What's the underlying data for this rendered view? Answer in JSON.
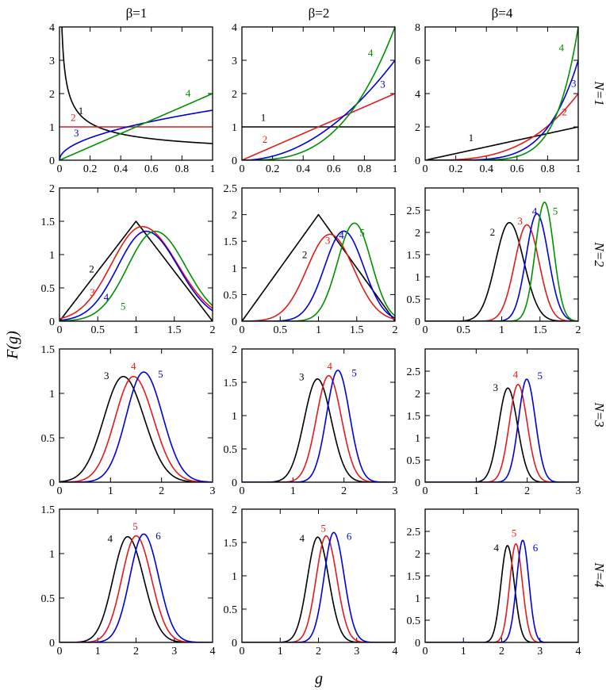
{
  "figure": {
    "ylabel": "F(g)",
    "xlabel": "g",
    "column_titles": [
      "β=1",
      "β=2",
      "β=4"
    ],
    "row_titles": [
      "N=1",
      "N=2",
      "N=3",
      "N=4"
    ]
  },
  "colors": {
    "black": "#000000",
    "red": "#e41a1c",
    "blue": "#0000dd",
    "green": "#009000"
  },
  "chart_data": [
    {
      "id": "N1-b1",
      "type": "line",
      "beta": 1,
      "N": 1,
      "xlim": [
        0,
        1
      ],
      "ylim": [
        0,
        4
      ],
      "xticks": [
        0,
        0.2,
        0.4,
        0.6,
        0.8,
        1
      ],
      "xtick_labels": [
        "0",
        "0.2",
        "0.4",
        "0.6",
        "0.8",
        "1"
      ],
      "yticks": [
        0,
        1,
        2,
        3,
        4
      ],
      "ytick_labels": [
        "0",
        "1",
        "2",
        "3",
        "4"
      ],
      "series": [
        {
          "name": "1",
          "color": "#000000",
          "form": "power",
          "a": 0.5,
          "p": -0.5,
          "label": "1",
          "label_at": [
            0.14,
            1.38
          ]
        },
        {
          "name": "2",
          "color": "#e41a1c",
          "form": "power",
          "a": 1,
          "p": 0,
          "label": "2",
          "label_at": [
            0.09,
            1.18
          ]
        },
        {
          "name": "3",
          "color": "#0000dd",
          "form": "power",
          "a": 1.5,
          "p": 0.5,
          "label": "3",
          "label_at": [
            0.11,
            0.72
          ]
        },
        {
          "name": "4",
          "color": "#009000",
          "form": "power",
          "a": 2,
          "p": 1,
          "label": "4",
          "label_at": [
            0.84,
            1.9
          ]
        }
      ]
    },
    {
      "id": "N1-b2",
      "type": "line",
      "beta": 2,
      "N": 1,
      "xlim": [
        0,
        1
      ],
      "ylim": [
        0,
        4
      ],
      "xticks": [
        0,
        0.2,
        0.4,
        0.6,
        0.8,
        1
      ],
      "xtick_labels": [
        "0",
        "0.2",
        "0.4",
        "0.6",
        "0.8",
        "1"
      ],
      "yticks": [
        0,
        1,
        2,
        3,
        4
      ],
      "ytick_labels": [
        "0",
        "1",
        "2",
        "3",
        "4"
      ],
      "series": [
        {
          "name": "1",
          "color": "#000000",
          "form": "power",
          "a": 1,
          "p": 0,
          "label": "1",
          "label_at": [
            0.14,
            1.18
          ]
        },
        {
          "name": "2",
          "color": "#e41a1c",
          "form": "power",
          "a": 2,
          "p": 1,
          "label": "2",
          "label_at": [
            0.15,
            0.52
          ]
        },
        {
          "name": "3",
          "color": "#0000dd",
          "form": "power",
          "a": 3,
          "p": 2,
          "label": "3",
          "label_at": [
            0.92,
            2.18
          ]
        },
        {
          "name": "4",
          "color": "#009000",
          "form": "power",
          "a": 4,
          "p": 3,
          "label": "4",
          "label_at": [
            0.84,
            3.12
          ]
        }
      ]
    },
    {
      "id": "N1-b4",
      "type": "line",
      "beta": 4,
      "N": 1,
      "xlim": [
        0,
        1
      ],
      "ylim": [
        0,
        8
      ],
      "xticks": [
        0,
        0.2,
        0.4,
        0.6,
        0.8,
        1
      ],
      "xtick_labels": [
        "0",
        "0.2",
        "0.4",
        "0.6",
        "0.8",
        "1"
      ],
      "yticks": [
        0,
        2,
        4,
        6,
        8
      ],
      "ytick_labels": [
        "0",
        "2",
        "4",
        "6",
        "8"
      ],
      "series": [
        {
          "name": "1",
          "color": "#000000",
          "form": "power",
          "a": 2,
          "p": 1,
          "label": "1",
          "label_at": [
            0.3,
            1.15
          ]
        },
        {
          "name": "2",
          "color": "#e41a1c",
          "form": "power",
          "a": 4,
          "p": 3,
          "label": "2",
          "label_at": [
            0.91,
            2.68
          ]
        },
        {
          "name": "3",
          "color": "#0000dd",
          "form": "power",
          "a": 6,
          "p": 5,
          "label": "3",
          "label_at": [
            0.97,
            4.4
          ]
        },
        {
          "name": "4",
          "color": "#009000",
          "form": "power",
          "a": 8,
          "p": 7,
          "label": "4",
          "label_at": [
            0.89,
            6.55
          ]
        }
      ]
    },
    {
      "id": "N2-b1",
      "type": "line",
      "beta": 1,
      "N": 2,
      "xlim": [
        0,
        2
      ],
      "ylim": [
        0,
        2
      ],
      "xticks": [
        0,
        0.5,
        1,
        1.5,
        2
      ],
      "xtick_labels": [
        "0",
        "0.5",
        "1",
        "1.5",
        "2"
      ],
      "yticks": [
        0,
        0.5,
        1,
        1.5,
        2
      ],
      "ytick_labels": [
        "0",
        "0.5",
        "1",
        "1.5",
        "2"
      ],
      "series": [
        {
          "name": "2",
          "color": "#000000",
          "form": "tri",
          "h": 1.5,
          "label": "2",
          "label_at": [
            0.42,
            0.73
          ]
        },
        {
          "name": "3",
          "color": "#e41a1c",
          "form": "bell",
          "mu": 1.08,
          "sl": 0.4,
          "sr": 0.46,
          "h": 1.42,
          "label": "3",
          "label_at": [
            0.43,
            0.38
          ]
        },
        {
          "name": "4",
          "color": "#0000dd",
          "form": "bell",
          "mu": 1.13,
          "sl": 0.37,
          "sr": 0.42,
          "h": 1.35,
          "label": "4",
          "label_at": [
            0.61,
            0.31
          ]
        },
        {
          "name": "5",
          "color": "#009000",
          "form": "bell",
          "mu": 1.25,
          "sl": 0.36,
          "sr": 0.4,
          "h": 1.35,
          "label": "5",
          "label_at": [
            0.83,
            0.17
          ]
        }
      ]
    },
    {
      "id": "N2-b2",
      "type": "line",
      "beta": 2,
      "N": 2,
      "xlim": [
        0,
        2
      ],
      "ylim": [
        0,
        2.5
      ],
      "xticks": [
        0,
        0.5,
        1,
        1.5,
        2
      ],
      "xtick_labels": [
        "0",
        "0.5",
        "1",
        "1.5",
        "2"
      ],
      "yticks": [
        0,
        0.5,
        1,
        1.5,
        2,
        2.5
      ],
      "ytick_labels": [
        "0",
        "0.5",
        "1",
        "1.5",
        "2",
        "2.5"
      ],
      "series": [
        {
          "name": "2",
          "color": "#000000",
          "form": "tri",
          "h": 2.0,
          "label": "2",
          "label_at": [
            0.82,
            1.18
          ]
        },
        {
          "name": "3",
          "color": "#e41a1c",
          "form": "bell",
          "mu": 1.15,
          "sl": 0.3,
          "sr": 0.31,
          "h": 1.63,
          "label": "3",
          "label_at": [
            1.12,
            1.45
          ]
        },
        {
          "name": "4",
          "color": "#0000dd",
          "form": "bell",
          "mu": 1.33,
          "sl": 0.25,
          "sr": 0.26,
          "h": 1.69,
          "label": "4",
          "label_at": [
            1.3,
            1.55
          ]
        },
        {
          "name": "5",
          "color": "#009000",
          "form": "bell",
          "mu": 1.47,
          "sl": 0.22,
          "sr": 0.22,
          "h": 1.84,
          "label": "5",
          "label_at": [
            1.57,
            1.6
          ]
        }
      ]
    },
    {
      "id": "N2-b4",
      "type": "line",
      "beta": 4,
      "N": 2,
      "xlim": [
        0,
        2
      ],
      "ylim": [
        0,
        3
      ],
      "xticks": [
        0,
        0.5,
        1,
        1.5,
        2
      ],
      "xtick_labels": [
        "0",
        "0.5",
        "1",
        "1.5",
        "2"
      ],
      "yticks": [
        0,
        0.5,
        1,
        1.5,
        2,
        2.5
      ],
      "ytick_labels": [
        "0",
        "0.5",
        "1",
        "1.5",
        "2",
        "2.5"
      ],
      "series": [
        {
          "name": "2",
          "color": "#000000",
          "form": "bell",
          "mu": 1.1,
          "sl": 0.18,
          "sr": 0.19,
          "h": 2.22,
          "label": "2",
          "label_at": [
            0.88,
            1.93
          ]
        },
        {
          "name": "3",
          "color": "#e41a1c",
          "form": "bell",
          "mu": 1.33,
          "sl": 0.16,
          "sr": 0.16,
          "h": 2.17,
          "label": "3",
          "label_at": [
            1.24,
            2.18
          ]
        },
        {
          "name": "4",
          "color": "#0000dd",
          "form": "bell",
          "mu": 1.46,
          "sl": 0.14,
          "sr": 0.15,
          "h": 2.42,
          "label": "4",
          "label_at": [
            1.43,
            2.4
          ]
        },
        {
          "name": "5",
          "color": "#009000",
          "form": "bell",
          "mu": 1.56,
          "sl": 0.12,
          "sr": 0.12,
          "h": 2.68,
          "label": "5",
          "label_at": [
            1.7,
            2.4
          ]
        }
      ]
    },
    {
      "id": "N3-b1",
      "type": "line",
      "beta": 1,
      "N": 3,
      "xlim": [
        0,
        3
      ],
      "ylim": [
        0,
        1.5
      ],
      "xticks": [
        0,
        1,
        2,
        3
      ],
      "xtick_labels": [
        "0",
        "1",
        "2",
        "3"
      ],
      "yticks": [
        0,
        0.5,
        1,
        1.5
      ],
      "ytick_labels": [
        "0",
        "0.5",
        "1",
        "1.5"
      ],
      "series": [
        {
          "name": "3",
          "color": "#000000",
          "form": "bell",
          "mu": 1.25,
          "sl": 0.38,
          "sr": 0.41,
          "h": 1.19,
          "label": "3",
          "label_at": [
            0.92,
            1.16
          ]
        },
        {
          "name": "4",
          "color": "#e41a1c",
          "form": "bell",
          "mu": 1.45,
          "sl": 0.36,
          "sr": 0.39,
          "h": 1.19,
          "label": "4",
          "label_at": [
            1.45,
            1.27
          ]
        },
        {
          "name": "5",
          "color": "#0000dd",
          "form": "bell",
          "mu": 1.65,
          "sl": 0.34,
          "sr": 0.37,
          "h": 1.24,
          "label": "5",
          "label_at": [
            1.98,
            1.18
          ]
        }
      ]
    },
    {
      "id": "N3-b2",
      "type": "line",
      "beta": 2,
      "N": 3,
      "xlim": [
        0,
        3
      ],
      "ylim": [
        0,
        2
      ],
      "xticks": [
        0,
        1,
        2,
        3
      ],
      "xtick_labels": [
        "0",
        "1",
        "2",
        "3"
      ],
      "yticks": [
        0,
        0.5,
        1,
        1.5,
        2
      ],
      "ytick_labels": [
        "0",
        "0.5",
        "1",
        "1.5",
        "2"
      ],
      "series": [
        {
          "name": "3",
          "color": "#000000",
          "form": "bell",
          "mu": 1.48,
          "sl": 0.26,
          "sr": 0.27,
          "h": 1.55,
          "label": "3",
          "label_at": [
            1.17,
            1.53
          ]
        },
        {
          "name": "4",
          "color": "#e41a1c",
          "form": "bell",
          "mu": 1.7,
          "sl": 0.24,
          "sr": 0.25,
          "h": 1.6,
          "label": "4",
          "label_at": [
            1.72,
            1.69
          ]
        },
        {
          "name": "5",
          "color": "#0000dd",
          "form": "bell",
          "mu": 1.88,
          "sl": 0.22,
          "sr": 0.23,
          "h": 1.68,
          "label": "5",
          "label_at": [
            2.2,
            1.59
          ]
        }
      ]
    },
    {
      "id": "N3-b4",
      "type": "line",
      "beta": 4,
      "N": 3,
      "xlim": [
        0,
        3
      ],
      "ylim": [
        0,
        3
      ],
      "xticks": [
        0,
        1,
        2,
        3
      ],
      "xtick_labels": [
        "0",
        "1",
        "2",
        "3"
      ],
      "yticks": [
        0,
        0.5,
        1,
        1.5,
        2,
        2.5
      ],
      "ytick_labels": [
        "0",
        "0.5",
        "1",
        "1.5",
        "2",
        "2.5"
      ],
      "series": [
        {
          "name": "3",
          "color": "#000000",
          "form": "bell",
          "mu": 1.62,
          "sl": 0.18,
          "sr": 0.19,
          "h": 2.12,
          "label": "3",
          "label_at": [
            1.38,
            2.05
          ]
        },
        {
          "name": "4",
          "color": "#e41a1c",
          "form": "bell",
          "mu": 1.82,
          "sl": 0.17,
          "sr": 0.18,
          "h": 2.2,
          "label": "4",
          "label_at": [
            1.77,
            2.35
          ]
        },
        {
          "name": "5",
          "color": "#0000dd",
          "form": "bell",
          "mu": 1.99,
          "sl": 0.16,
          "sr": 0.17,
          "h": 2.32,
          "label": "5",
          "label_at": [
            2.25,
            2.32
          ]
        }
      ]
    },
    {
      "id": "N4-b1",
      "type": "line",
      "beta": 1,
      "N": 4,
      "xlim": [
        0,
        4
      ],
      "ylim": [
        0,
        1.5
      ],
      "xticks": [
        0,
        1,
        2,
        3,
        4
      ],
      "xtick_labels": [
        "0",
        "1",
        "2",
        "3",
        "4"
      ],
      "yticks": [
        0,
        0.5,
        1,
        1.5
      ],
      "ytick_labels": [
        "0",
        "0.5",
        "1",
        "1.5"
      ],
      "series": [
        {
          "name": "4",
          "color": "#000000",
          "form": "bell",
          "mu": 1.78,
          "sl": 0.38,
          "sr": 0.42,
          "h": 1.19,
          "label": "4",
          "label_at": [
            1.32,
            1.13
          ]
        },
        {
          "name": "5",
          "color": "#e41a1c",
          "form": "bell",
          "mu": 2.0,
          "sl": 0.37,
          "sr": 0.4,
          "h": 1.2,
          "label": "5",
          "label_at": [
            1.98,
            1.27
          ]
        },
        {
          "name": "6",
          "color": "#0000dd",
          "form": "bell",
          "mu": 2.2,
          "sl": 0.36,
          "sr": 0.39,
          "h": 1.22,
          "label": "6",
          "label_at": [
            2.58,
            1.16
          ]
        }
      ]
    },
    {
      "id": "N4-b2",
      "type": "line",
      "beta": 2,
      "N": 4,
      "xlim": [
        0,
        4
      ],
      "ylim": [
        0,
        2
      ],
      "xticks": [
        0,
        1,
        2,
        3,
        4
      ],
      "xtick_labels": [
        "0",
        "1",
        "2",
        "3",
        "4"
      ],
      "yticks": [
        0,
        0.5,
        1,
        1.5,
        2
      ],
      "ytick_labels": [
        "0",
        "0.5",
        "1",
        "1.5",
        "2"
      ],
      "series": [
        {
          "name": "4",
          "color": "#000000",
          "form": "bell",
          "mu": 1.98,
          "sl": 0.27,
          "sr": 0.29,
          "h": 1.58,
          "label": "4",
          "label_at": [
            1.57,
            1.51
          ]
        },
        {
          "name": "5",
          "color": "#e41a1c",
          "form": "bell",
          "mu": 2.2,
          "sl": 0.26,
          "sr": 0.28,
          "h": 1.6,
          "label": "5",
          "label_at": [
            2.13,
            1.66
          ]
        },
        {
          "name": "6",
          "color": "#0000dd",
          "form": "bell",
          "mu": 2.4,
          "sl": 0.25,
          "sr": 0.27,
          "h": 1.65,
          "label": "6",
          "label_at": [
            2.8,
            1.54
          ]
        }
      ]
    },
    {
      "id": "N4-b4",
      "type": "line",
      "beta": 4,
      "N": 4,
      "xlim": [
        0,
        4
      ],
      "ylim": [
        0,
        3
      ],
      "xticks": [
        0,
        1,
        2,
        3,
        4
      ],
      "xtick_labels": [
        "0",
        "1",
        "2",
        "3",
        "4"
      ],
      "yticks": [
        0,
        0.5,
        1,
        1.5,
        2,
        2.5
      ],
      "ytick_labels": [
        "0",
        "0.5",
        "1",
        "1.5",
        "2",
        "2.5"
      ],
      "series": [
        {
          "name": "4",
          "color": "#000000",
          "form": "bell",
          "mu": 2.15,
          "sl": 0.17,
          "sr": 0.18,
          "h": 2.18,
          "label": "4",
          "label_at": [
            1.86,
            2.05
          ]
        },
        {
          "name": "5",
          "color": "#e41a1c",
          "form": "bell",
          "mu": 2.37,
          "sl": 0.16,
          "sr": 0.17,
          "h": 2.22,
          "label": "5",
          "label_at": [
            2.32,
            2.38
          ]
        },
        {
          "name": "6",
          "color": "#0000dd",
          "form": "bell",
          "mu": 2.55,
          "sl": 0.16,
          "sr": 0.16,
          "h": 2.3,
          "label": "6",
          "label_at": [
            2.88,
            2.05
          ]
        }
      ]
    }
  ]
}
